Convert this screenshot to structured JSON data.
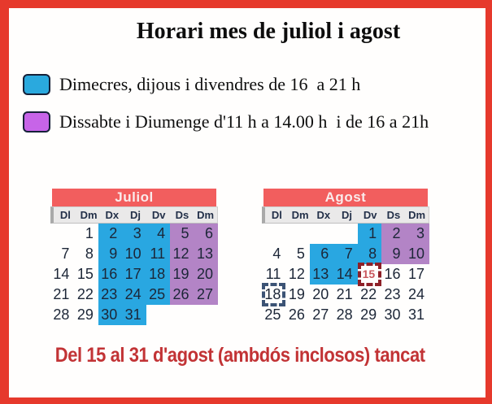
{
  "title": "Horari mes de juliol i agost",
  "legend": [
    {
      "name": "open-weekdays",
      "label": "Dimecres, dijous i divendres de 16  a 21 h",
      "color": "#2AA9DE"
    },
    {
      "name": "open-weekends",
      "label": "Dissabte i Diumenge d'11 h a 14.00 h  i de 16 a 21h",
      "color": "#C764E8"
    }
  ],
  "day_headers": [
    "Dl",
    "Dm",
    "Dx",
    "Dj",
    "Dv",
    "Ds",
    "Dm"
  ],
  "calendars": [
    {
      "month": "Juliol",
      "weeks": [
        [
          {
            "t": ""
          },
          {
            "t": "1"
          },
          {
            "t": "2",
            "s": "wd"
          },
          {
            "t": "3",
            "s": "wd"
          },
          {
            "t": "4",
            "s": "wd"
          },
          {
            "t": "5",
            "s": "we"
          },
          {
            "t": "6",
            "s": "we"
          }
        ],
        [
          {
            "t": "7"
          },
          {
            "t": "8"
          },
          {
            "t": "9",
            "s": "wd"
          },
          {
            "t": "10",
            "s": "wd"
          },
          {
            "t": "11",
            "s": "wd"
          },
          {
            "t": "12",
            "s": "we"
          },
          {
            "t": "13",
            "s": "we"
          }
        ],
        [
          {
            "t": "14"
          },
          {
            "t": "15"
          },
          {
            "t": "16",
            "s": "wd"
          },
          {
            "t": "17",
            "s": "wd"
          },
          {
            "t": "18",
            "s": "wd"
          },
          {
            "t": "19",
            "s": "we"
          },
          {
            "t": "20",
            "s": "we"
          }
        ],
        [
          {
            "t": "21"
          },
          {
            "t": "22"
          },
          {
            "t": "23",
            "s": "wd"
          },
          {
            "t": "24",
            "s": "wd"
          },
          {
            "t": "25",
            "s": "wd"
          },
          {
            "t": "26",
            "s": "we"
          },
          {
            "t": "27",
            "s": "we"
          }
        ],
        [
          {
            "t": "28"
          },
          {
            "t": "29"
          },
          {
            "t": "30",
            "s": "wd"
          },
          {
            "t": "31",
            "s": "wd"
          },
          {
            "t": ""
          },
          {
            "t": ""
          },
          {
            "t": ""
          }
        ]
      ]
    },
    {
      "month": "Agost",
      "weeks": [
        [
          {
            "t": ""
          },
          {
            "t": ""
          },
          {
            "t": ""
          },
          {
            "t": ""
          },
          {
            "t": "1",
            "s": "wd"
          },
          {
            "t": "2",
            "s": "we"
          },
          {
            "t": "3",
            "s": "we"
          }
        ],
        [
          {
            "t": "4"
          },
          {
            "t": "5"
          },
          {
            "t": "6",
            "s": "wd"
          },
          {
            "t": "7",
            "s": "wd"
          },
          {
            "t": "8",
            "s": "wd"
          },
          {
            "t": "9",
            "s": "we"
          },
          {
            "t": "10",
            "s": "we"
          }
        ],
        [
          {
            "t": "11"
          },
          {
            "t": "12"
          },
          {
            "t": "13",
            "s": "wd"
          },
          {
            "t": "14",
            "s": "wd"
          },
          {
            "t": "15",
            "s": "closed"
          },
          {
            "t": "16"
          },
          {
            "t": "17"
          }
        ],
        [
          {
            "t": "18",
            "s": "marked"
          },
          {
            "t": "19"
          },
          {
            "t": "20"
          },
          {
            "t": "21"
          },
          {
            "t": "22"
          },
          {
            "t": "23"
          },
          {
            "t": "24"
          }
        ],
        [
          {
            "t": "25"
          },
          {
            "t": "26"
          },
          {
            "t": "27"
          },
          {
            "t": "28"
          },
          {
            "t": "29"
          },
          {
            "t": "30"
          },
          {
            "t": "31"
          }
        ]
      ]
    }
  ],
  "footer_note": "Del 15 al 31 d'agost (ambdós inclosos) tancat",
  "colors": {
    "frame": "#E6392C",
    "month_header": "#F25E5E",
    "open_weekday": "#29A7E1",
    "open_weekend": "#B384C6",
    "closed_marker_border": "#8E2028",
    "closed_marker_text": "#C9595F",
    "marked_day_border": "#3C5375",
    "footer_text": "#C23335"
  }
}
